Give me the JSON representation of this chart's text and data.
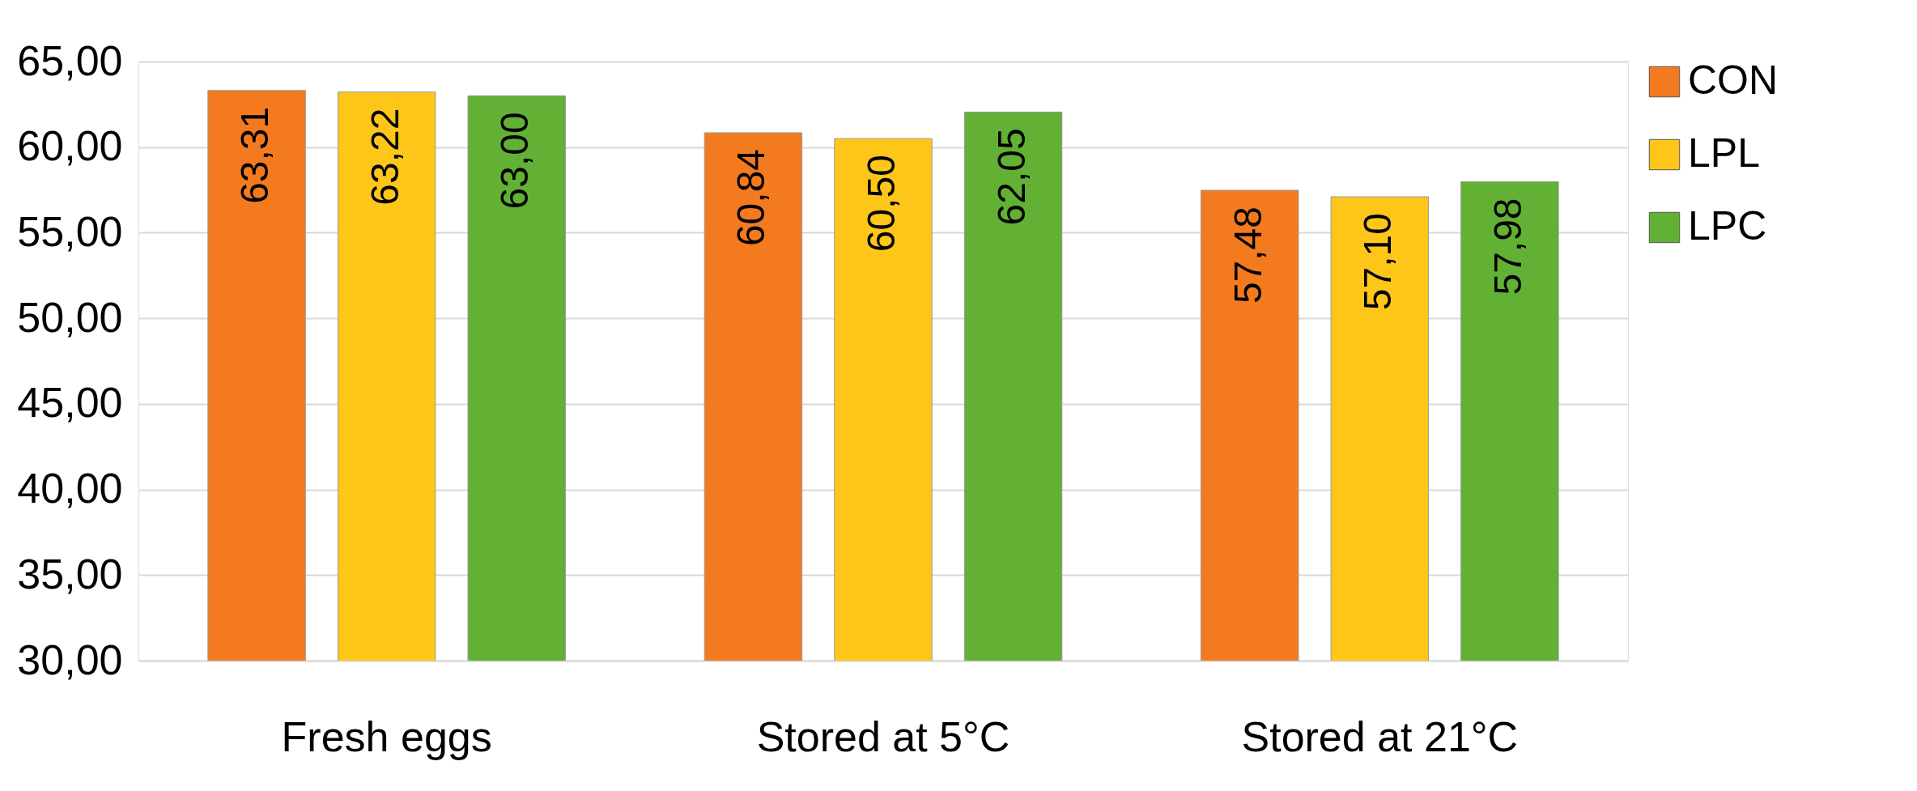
{
  "chart_data": {
    "type": "bar",
    "categories": [
      "Fresh eggs",
      "Stored at 5°C",
      "Stored at 21°C"
    ],
    "series": [
      {
        "name": "CON",
        "color": "#f47a1f",
        "values": [
          63.31,
          60.84,
          57.48
        ],
        "value_labels": [
          "63,31",
          "60,84",
          "57,48"
        ]
      },
      {
        "name": "LPL",
        "color": "#ffc61a",
        "values": [
          63.22,
          60.5,
          57.1
        ],
        "value_labels": [
          "63,22",
          "60,50",
          "57,10"
        ]
      },
      {
        "name": "LPC",
        "color": "#62b034",
        "values": [
          63.0,
          62.05,
          57.98
        ],
        "value_labels": [
          "63,00",
          "62,05",
          "57,98"
        ]
      }
    ],
    "ylim": [
      30,
      65
    ],
    "yticks": [
      {
        "value": 30,
        "label": "30,00"
      },
      {
        "value": 35,
        "label": "35,00"
      },
      {
        "value": 40,
        "label": "40,00"
      },
      {
        "value": 45,
        "label": "45,00"
      },
      {
        "value": 50,
        "label": "50,00"
      },
      {
        "value": 55,
        "label": "55,00"
      },
      {
        "value": 60,
        "label": "60,00"
      },
      {
        "value": 65,
        "label": "65,00"
      }
    ],
    "grid": "y",
    "legend": "right"
  }
}
